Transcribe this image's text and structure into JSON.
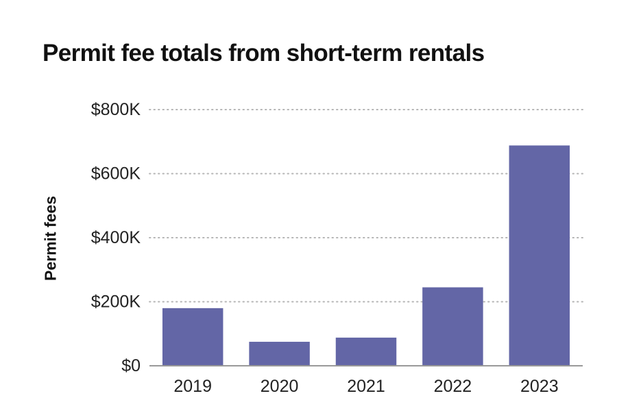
{
  "title": "Permit fee totals from short-term rentals",
  "chart_data": {
    "type": "bar",
    "title": "Permit fee totals from short-term rentals",
    "xlabel": "",
    "ylabel": "Permit fees",
    "categories": [
      "2019",
      "2020",
      "2021",
      "2022",
      "2023"
    ],
    "values": [
      180000,
      75000,
      88000,
      245000,
      688000
    ],
    "ylim": [
      0,
      800000
    ],
    "yticks": [
      0,
      200000,
      400000,
      600000,
      800000
    ],
    "ytick_labels": [
      "$0",
      "$200K",
      "$400K",
      "$600K",
      "$800K"
    ],
    "grid": "dotted horizontal",
    "legend": "none",
    "bar_color": "#6366a6",
    "grid_color": "#b5b5b5",
    "axis_color": "#999999"
  }
}
